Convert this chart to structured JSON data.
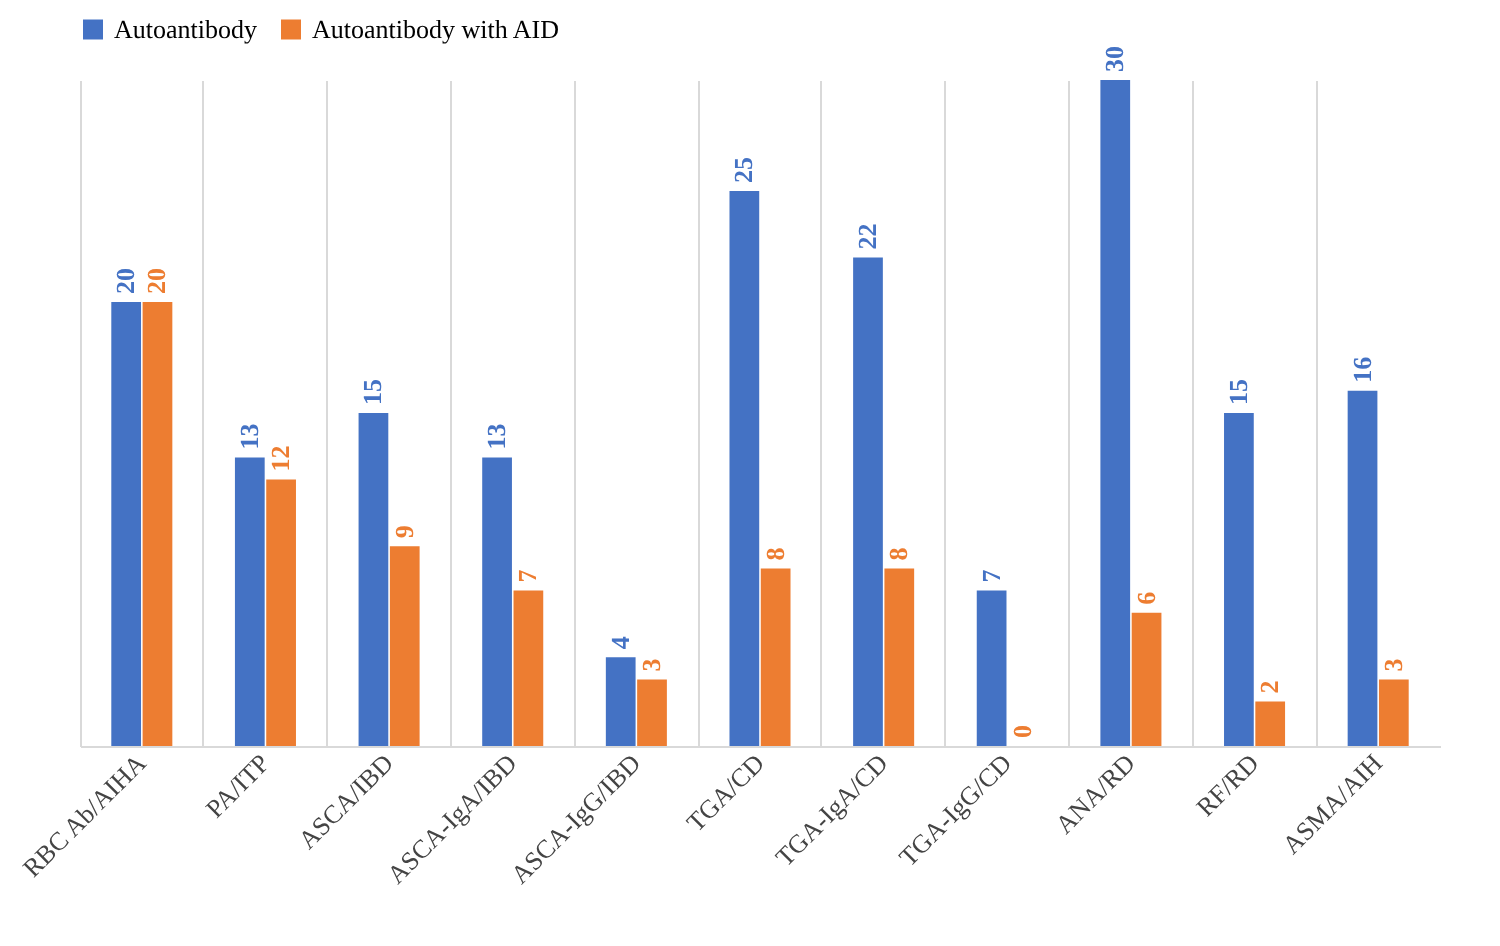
{
  "chart_data": {
    "type": "bar",
    "categories": [
      "RBC Ab/AIHA",
      "PA/ITP",
      "ASCA/IBD",
      "ASCA-IgA/IBD",
      "ASCA-IgG/IBD",
      "TGA/CD",
      "TGA-IgA/CD",
      "TGA-IgG/CD",
      "ANA/RD",
      "RF/RD",
      "ASMA/AIH"
    ],
    "series": [
      {
        "name": "Autoantibody",
        "color": "#4472c4",
        "values": [
          20,
          13,
          15,
          13,
          4,
          25,
          22,
          7,
          30,
          15,
          16
        ]
      },
      {
        "name": "Autoantibody with AID",
        "color": "#ed7d31",
        "values": [
          20,
          12,
          9,
          7,
          3,
          8,
          8,
          0,
          6,
          2,
          3
        ]
      }
    ],
    "data_labels": true,
    "grid": "x",
    "legend": "top"
  }
}
